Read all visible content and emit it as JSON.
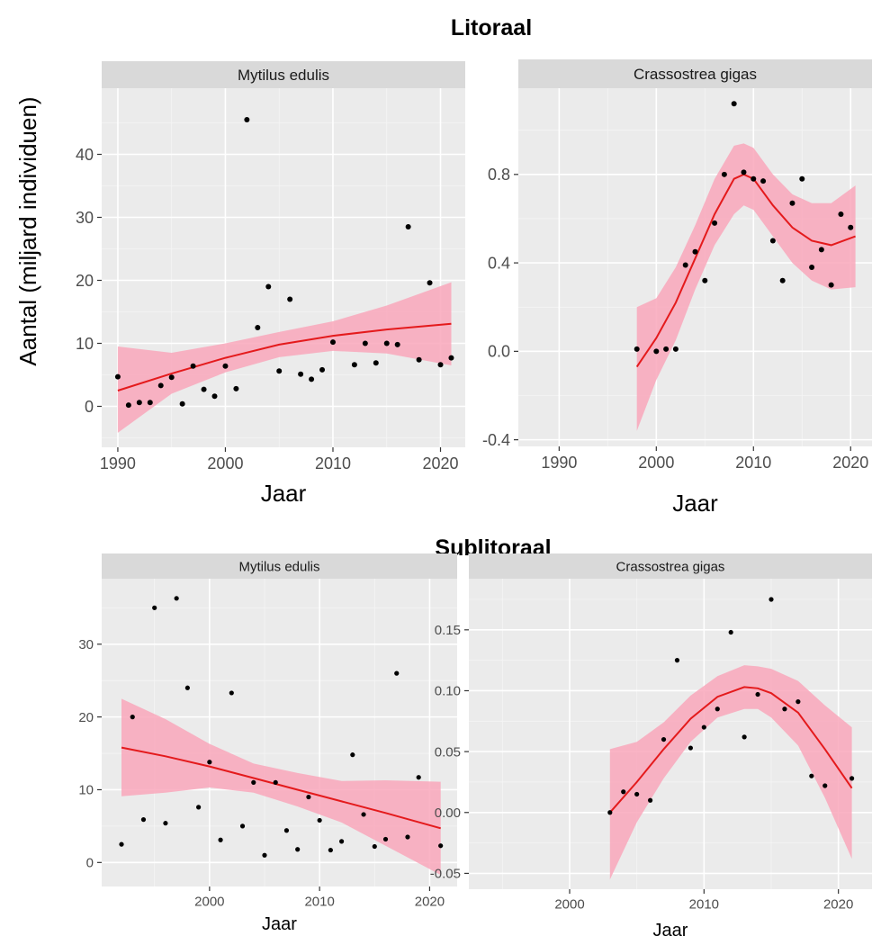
{
  "sections": {
    "top": "Litoraal",
    "bottom": "Sublitoraal"
  },
  "y_axis_title": "Aantal (miljard individuen)",
  "chart_data": [
    {
      "type": "scatter",
      "section": "Litoraal",
      "title": "Mytilus edulis",
      "xlabel": "Jaar",
      "ylabel": "",
      "xlim": [
        1988.5,
        2022.3
      ],
      "ylim": [
        -6.5,
        50.5
      ],
      "x_ticks": [
        1990,
        2000,
        2010,
        2020
      ],
      "y_ticks": [
        0,
        10,
        20,
        30,
        40
      ],
      "grid": true,
      "points": {
        "x": [
          1990,
          1991,
          1992,
          1993,
          1994,
          1995,
          1996,
          1997,
          1998,
          1999,
          2000,
          2001,
          2002,
          2003,
          2004,
          2005,
          2006,
          2007,
          2008,
          2009,
          2010,
          2012,
          2013,
          2014,
          2015,
          2016,
          2017,
          2018,
          2019,
          2020,
          2021
        ],
        "y": [
          4.7,
          0.2,
          0.6,
          0.6,
          3.3,
          4.6,
          0.4,
          6.4,
          2.7,
          1.6,
          6.4,
          2.8,
          45.5,
          12.5,
          19.0,
          5.6,
          17.0,
          5.1,
          4.3,
          5.8,
          10.2,
          6.6,
          10.0,
          6.9,
          10.0,
          9.8,
          28.5,
          7.4,
          19.6,
          6.6,
          7.7
        ]
      },
      "series": [
        {
          "name": "",
          "x": [
            1990,
            1995,
            2000,
            2005,
            2010,
            2015,
            2021
          ],
          "y": [
            2.5,
            5.2,
            7.7,
            9.8,
            11.2,
            12.2,
            13.1
          ],
          "lower": [
            -4.2,
            2.0,
            5.4,
            7.8,
            8.8,
            8.4,
            6.5
          ],
          "upper": [
            9.5,
            8.5,
            10.0,
            11.8,
            13.5,
            16.0,
            19.7
          ]
        }
      ],
      "colors": {
        "line": "#e41a1c",
        "band": "#f9a7bb",
        "points": "#000000",
        "panel": "#ebebeb",
        "strip": "#d9d9d9"
      }
    },
    {
      "type": "scatter",
      "section": "Litoraal",
      "title": "Crassostrea gigas",
      "xlabel": "Jaar",
      "ylabel": "",
      "xlim": [
        1985.8,
        2022.2
      ],
      "ylim": [
        -0.43,
        1.19
      ],
      "x_ticks": [
        1990,
        2000,
        2010,
        2020
      ],
      "y_ticks": [
        -0.4,
        0.0,
        0.4,
        0.8
      ],
      "y_tick_labels": [
        "-0.4",
        "0.0",
        "0.4",
        "0.8"
      ],
      "grid": true,
      "points": {
        "x": [
          1998,
          2000,
          2001,
          2002,
          2003,
          2004,
          2005,
          2006,
          2007,
          2008,
          2009,
          2010,
          2011,
          2012,
          2013,
          2014,
          2015,
          2016,
          2017,
          2018,
          2019,
          2020
        ],
        "y": [
          0.01,
          0.0,
          0.01,
          0.01,
          0.39,
          0.45,
          0.32,
          0.58,
          0.8,
          1.12,
          0.81,
          0.78,
          0.77,
          0.5,
          0.32,
          0.67,
          0.78,
          0.38,
          0.46,
          0.3,
          0.62,
          0.56
        ]
      },
      "series": [
        {
          "name": "",
          "x": [
            1998,
            2000,
            2002,
            2004,
            2006,
            2008,
            2009,
            2010,
            2012,
            2014,
            2016,
            2018,
            2020.5
          ],
          "y": [
            -0.07,
            0.06,
            0.22,
            0.42,
            0.62,
            0.78,
            0.8,
            0.78,
            0.66,
            0.56,
            0.5,
            0.48,
            0.52
          ],
          "lower": [
            -0.36,
            -0.13,
            0.05,
            0.28,
            0.48,
            0.62,
            0.66,
            0.64,
            0.52,
            0.4,
            0.32,
            0.28,
            0.29
          ],
          "upper": [
            0.2,
            0.24,
            0.38,
            0.57,
            0.78,
            0.93,
            0.94,
            0.92,
            0.8,
            0.71,
            0.67,
            0.67,
            0.75
          ]
        }
      ],
      "colors": {
        "line": "#e41a1c",
        "band": "#f9a7bb",
        "points": "#000000",
        "panel": "#ebebeb",
        "strip": "#d9d9d9"
      }
    },
    {
      "type": "scatter",
      "section": "Sublitoraal",
      "title": "Mytilus edulis",
      "xlabel": "Jaar",
      "ylabel": "",
      "xlim": [
        1990.2,
        2022.5
      ],
      "ylim": [
        -3.3,
        39.0
      ],
      "x_ticks": [
        2000,
        2010,
        2020
      ],
      "y_ticks": [
        0,
        10,
        20,
        30
      ],
      "grid": true,
      "points": {
        "x": [
          1992,
          1993,
          1994,
          1995,
          1996,
          1997,
          1998,
          1999,
          2000,
          2001,
          2002,
          2003,
          2004,
          2005,
          2006,
          2007,
          2008,
          2009,
          2010,
          2011,
          2012,
          2013,
          2014,
          2015,
          2016,
          2017,
          2018,
          2019,
          2021
        ],
        "y": [
          2.5,
          20.0,
          5.9,
          35.0,
          5.4,
          36.3,
          24.0,
          7.6,
          13.8,
          3.1,
          23.3,
          5.0,
          11.0,
          1.0,
          11.0,
          4.4,
          1.8,
          9.0,
          5.8,
          1.7,
          2.9,
          14.8,
          6.6,
          2.2,
          3.2,
          26.0,
          3.5,
          11.7,
          2.3
        ]
      },
      "series": [
        {
          "name": "",
          "x": [
            1992,
            1996,
            2000,
            2004,
            2008,
            2012,
            2016,
            2021
          ],
          "y": [
            15.8,
            14.6,
            13.2,
            11.6,
            10.0,
            8.4,
            6.8,
            4.7
          ],
          "lower": [
            9.1,
            9.6,
            10.3,
            9.6,
            7.7,
            5.5,
            2.3,
            -1.7
          ],
          "upper": [
            22.5,
            19.7,
            16.3,
            13.6,
            12.3,
            11.2,
            11.3,
            11.1
          ]
        }
      ],
      "colors": {
        "line": "#e41a1c",
        "band": "#f9a7bb",
        "points": "#000000",
        "panel": "#ebebeb",
        "strip": "#d9d9d9"
      }
    },
    {
      "type": "scatter",
      "section": "Sublitoraal",
      "title": "Crassostrea gigas",
      "xlabel": "Jaar",
      "ylabel": "",
      "xlim": [
        1992.5,
        2022.5
      ],
      "ylim": [
        -0.063,
        0.192
      ],
      "x_ticks": [
        2000,
        2010,
        2020
      ],
      "y_ticks": [
        -0.05,
        0.0,
        0.05,
        0.1,
        0.15
      ],
      "y_tick_labels": [
        "-0.05",
        "0.00",
        "0.05",
        "0.10",
        "0.15"
      ],
      "grid": true,
      "points": {
        "x": [
          2003,
          2004,
          2005,
          2006,
          2007,
          2008,
          2009,
          2010,
          2011,
          2012,
          2013,
          2014,
          2015,
          2016,
          2017,
          2018,
          2019,
          2021
        ],
        "y": [
          0.0,
          0.017,
          0.015,
          0.01,
          0.06,
          0.125,
          0.053,
          0.07,
          0.085,
          0.148,
          0.062,
          0.097,
          0.175,
          0.085,
          0.091,
          0.03,
          0.022,
          0.028
        ]
      },
      "series": [
        {
          "name": "",
          "x": [
            2003,
            2005,
            2007,
            2009,
            2011,
            2013,
            2014,
            2015,
            2017,
            2019,
            2021
          ],
          "y": [
            0.0,
            0.025,
            0.052,
            0.077,
            0.095,
            0.103,
            0.102,
            0.098,
            0.082,
            0.052,
            0.02
          ],
          "lower": [
            -0.055,
            -0.008,
            0.028,
            0.058,
            0.078,
            0.085,
            0.085,
            0.078,
            0.055,
            0.012,
            -0.038
          ],
          "upper": [
            0.052,
            0.058,
            0.074,
            0.096,
            0.112,
            0.121,
            0.12,
            0.118,
            0.108,
            0.088,
            0.07
          ]
        }
      ],
      "colors": {
        "line": "#e41a1c",
        "band": "#f9a7bb",
        "points": "#000000",
        "panel": "#ebebeb",
        "strip": "#d9d9d9"
      }
    }
  ]
}
